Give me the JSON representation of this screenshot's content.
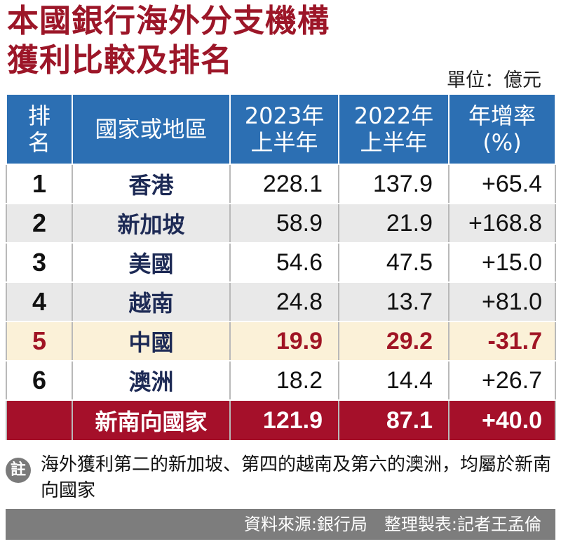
{
  "header": {
    "title_line1": "本國銀行海外分支機構",
    "title_line2": "獲利比較及排名",
    "unit": "單位：億元"
  },
  "table": {
    "columns": [
      {
        "line1": "排",
        "line2": "名"
      },
      {
        "line1": "國家或地區",
        "line2": ""
      },
      {
        "line1": "2023年",
        "line2": "上半年"
      },
      {
        "line1": "2022年",
        "line2": "上半年"
      },
      {
        "line1": "年增率",
        "line2": "(%)"
      }
    ],
    "rows": [
      {
        "rank": "1",
        "name": "香港",
        "y2023": "228.1",
        "y2022": "137.9",
        "rate": "+65.4"
      },
      {
        "rank": "2",
        "name": "新加坡",
        "y2023": "58.9",
        "y2022": "21.9",
        "rate": "+168.8"
      },
      {
        "rank": "3",
        "name": "美國",
        "y2023": "54.6",
        "y2022": "47.5",
        "rate": "+15.0"
      },
      {
        "rank": "4",
        "name": "越南",
        "y2023": "24.8",
        "y2022": "13.7",
        "rate": "+81.0"
      },
      {
        "rank": "5",
        "name": "中國",
        "y2023": "19.9",
        "y2022": "29.2",
        "rate": "-31.7"
      },
      {
        "rank": "6",
        "name": "澳洲",
        "y2023": "18.2",
        "y2022": "14.4",
        "rate": "+26.7"
      }
    ],
    "total": {
      "rank": "",
      "name": "新南向國家",
      "y2023": "121.9",
      "y2022": "87.1",
      "rate": "+40.0"
    }
  },
  "note": {
    "badge": "註",
    "text": "海外獲利第二的新加坡、第四的越南及第六的澳洲，均屬於新南向國家"
  },
  "footer": {
    "source": "資料來源:銀行局　整理製表:記者王孟倫"
  },
  "colors": {
    "title": "#9c1628",
    "header_bg": "#2c6fb3",
    "highlight_bg": "#fbf1d8",
    "highlight_text": "#a01424",
    "total_bg": "#a5102a",
    "footer_bg": "#7d7d7d"
  },
  "chart_data": {
    "type": "table",
    "title": "本國銀行海外分支機構獲利比較及排名",
    "unit": "單位：億元",
    "columns": [
      "排名",
      "國家或地區",
      "2023年上半年",
      "2022年上半年",
      "年增率(%)"
    ],
    "rows": [
      [
        1,
        "香港",
        228.1,
        137.9,
        65.4
      ],
      [
        2,
        "新加坡",
        58.9,
        21.9,
        168.8
      ],
      [
        3,
        "美國",
        54.6,
        47.5,
        15.0
      ],
      [
        4,
        "越南",
        24.8,
        13.7,
        81.0
      ],
      [
        5,
        "中國",
        19.9,
        29.2,
        -31.7
      ],
      [
        6,
        "澳洲",
        18.2,
        14.4,
        26.7
      ],
      [
        null,
        "新南向國家",
        121.9,
        87.1,
        40.0
      ]
    ]
  }
}
